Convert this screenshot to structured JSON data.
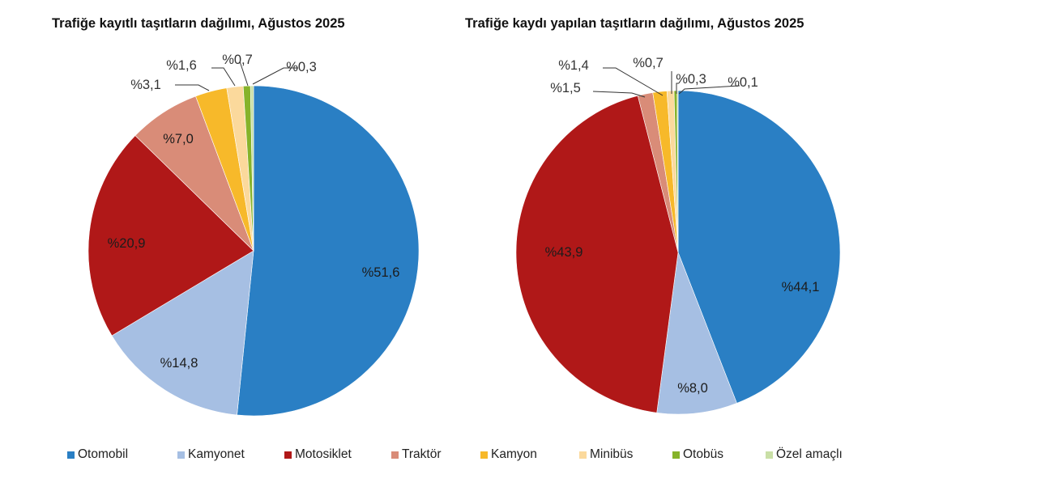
{
  "chart_data": [
    {
      "type": "pie",
      "title": "Trafiğe kayıtlı taşıtların dağılımı, Ağustos 2025",
      "categories": [
        "Otomobil",
        "Kamyonet",
        "Motosiklet",
        "Traktör",
        "Kamyon",
        "Minibüs",
        "Otobüs",
        "Özel amaçlı"
      ],
      "values": [
        51.6,
        14.8,
        20.9,
        7.0,
        3.1,
        1.6,
        0.7,
        0.3
      ],
      "labels": [
        "%51,6",
        "%14,8",
        "%20,9",
        "%7,0",
        "%3,1",
        "%1,6",
        "%0,7",
        "%0,3"
      ],
      "start_angle": "12 o'clock, clockwise",
      "legend_position": "bottom"
    },
    {
      "type": "pie",
      "title": "Trafiğe kaydı yapılan taşıtların dağılımı, Ağustos 2025",
      "categories": [
        "Otomobil",
        "Kamyonet",
        "Motosiklet",
        "Traktör",
        "Kamyon",
        "Minibüs",
        "Otobüs",
        "Özel amaçlı"
      ],
      "values": [
        44.1,
        8.0,
        43.9,
        1.5,
        1.4,
        0.7,
        0.3,
        0.1
      ],
      "labels": [
        "%44,1",
        "%8,0",
        "%43,9",
        "%1,5",
        "%1,4",
        "%0,7",
        "%0,3",
        "%0,1"
      ],
      "start_angle": "12 o'clock, clockwise",
      "legend_position": "bottom"
    }
  ],
  "titles": {
    "left": "Trafiğe kayıtlı taşıtların dağılımı, Ağustos 2025",
    "right": "Trafiğe kaydı yapılan taşıtların dağılımı, Ağustos 2025"
  },
  "colors": {
    "Otomobil": "#2a7fc4",
    "Kamyonet": "#a6bfe3",
    "Motosiklet": "#b01818",
    "Traktör": "#d98c78",
    "Kamyon": "#f7b92a",
    "Minibüs": "#fbd99c",
    "Otobüs": "#86b32a",
    "Özel amaçlı": "#c9dfa6"
  },
  "legend": [
    {
      "label": "Otomobil",
      "color": "#2a7fc4"
    },
    {
      "label": "Kamyonet",
      "color": "#a6bfe3"
    },
    {
      "label": "Motosiklet",
      "color": "#b01818"
    },
    {
      "label": "Traktör",
      "color": "#d98c78"
    },
    {
      "label": "Kamyon",
      "color": "#f7b92a"
    },
    {
      "label": "Minibüs",
      "color": "#fbd99c"
    },
    {
      "label": "Otobüs",
      "color": "#86b32a"
    },
    {
      "label": "Özel amaçlı",
      "color": "#c9dfa6"
    }
  ]
}
